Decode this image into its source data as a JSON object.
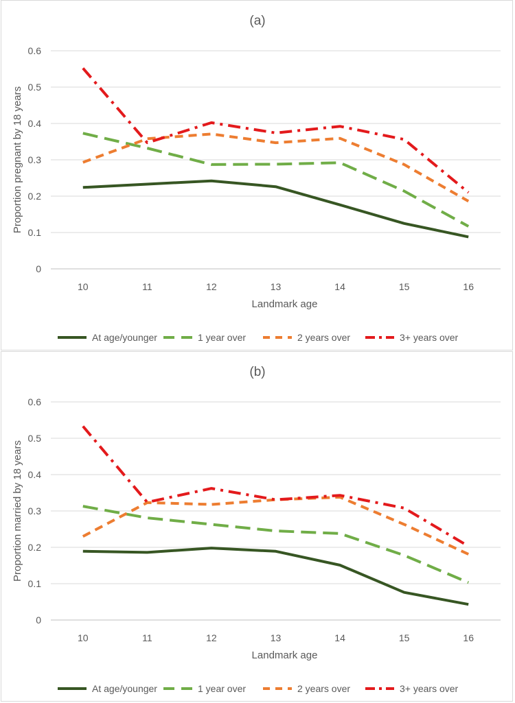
{
  "chart_data": [
    {
      "type": "line",
      "title": "(a)",
      "xlabel": "Landmark age",
      "ylabel": "Proportion pregnant by 18 years",
      "categories": [
        "10",
        "11",
        "12",
        "13",
        "14",
        "15",
        "16"
      ],
      "ylim": [
        0,
        0.6
      ],
      "yticks": [
        "0",
        "0.1",
        "0.2",
        "0.3",
        "0.4",
        "0.5",
        "0.6"
      ],
      "grid": true,
      "legend_position": "bottom",
      "series": [
        {
          "name": "At age/younger",
          "color": "#375623",
          "dash": "solid",
          "values": [
            0.224,
            0.233,
            0.242,
            0.226,
            0.176,
            0.125,
            0.088
          ]
        },
        {
          "name": "1 year over",
          "color": "#70ad47",
          "dash": "long-dash",
          "values": [
            0.373,
            0.332,
            0.287,
            0.288,
            0.292,
            0.214,
            0.117
          ]
        },
        {
          "name": "2 years over",
          "color": "#ed7d31",
          "dash": "dash",
          "values": [
            0.293,
            0.358,
            0.371,
            0.347,
            0.359,
            0.287,
            0.186
          ]
        },
        {
          "name": "3+ years over",
          "color": "#e31a1c",
          "dash": "dash-dot",
          "values": [
            0.552,
            0.347,
            0.402,
            0.374,
            0.392,
            0.356,
            0.21
          ]
        }
      ]
    },
    {
      "type": "line",
      "title": "(b)",
      "xlabel": "Landmark age",
      "ylabel": "Proportion married by 18 years",
      "categories": [
        "10",
        "11",
        "12",
        "13",
        "14",
        "15",
        "16"
      ],
      "ylim": [
        0,
        0.6
      ],
      "yticks": [
        "0",
        "0.1",
        "0.2",
        "0.3",
        "0.4",
        "0.5",
        "0.6"
      ],
      "grid": true,
      "legend_position": "bottom",
      "series": [
        {
          "name": "At age/younger",
          "color": "#375623",
          "dash": "solid",
          "values": [
            0.189,
            0.186,
            0.198,
            0.189,
            0.151,
            0.076,
            0.043
          ]
        },
        {
          "name": "1 year over",
          "color": "#70ad47",
          "dash": "long-dash",
          "values": [
            0.313,
            0.281,
            0.263,
            0.245,
            0.238,
            0.178,
            0.103
          ]
        },
        {
          "name": "2 years over",
          "color": "#ed7d31",
          "dash": "dash",
          "values": [
            0.23,
            0.323,
            0.318,
            0.331,
            0.338,
            0.263,
            0.181
          ]
        },
        {
          "name": "3+ years over",
          "color": "#e31a1c",
          "dash": "dash-dot",
          "values": [
            0.533,
            0.324,
            0.362,
            0.331,
            0.343,
            0.308,
            0.203
          ]
        }
      ]
    }
  ]
}
